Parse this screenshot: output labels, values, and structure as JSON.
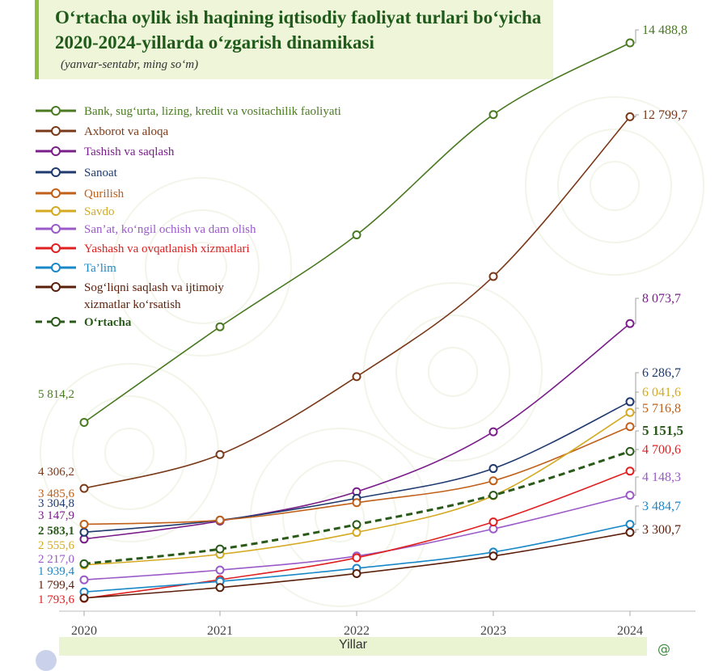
{
  "title": "O‘rtacha oylik ish haqining iqtisodiy faoliyat turlari bo‘yicha 2020-2024-yillarda o‘zgarish dinamikasi",
  "subtitle": "(yanvar-sentabr, ming so‘m)",
  "chart_data": {
    "type": "line",
    "x": [
      "2020",
      "2021",
      "2022",
      "2023",
      "2024"
    ],
    "xlabel": "Yillar",
    "ylabel": "",
    "legend_position": "top-left",
    "grid": false,
    "series": [
      {
        "name": "Bank, sug‘urta, lizing, kredit va vositachilik faoliyati",
        "color": "#4a7a22",
        "values": [
          5814.2,
          8000,
          10100,
          12850,
          14488.8
        ],
        "start_label": "5 814,2",
        "end_label": "14 488,8"
      },
      {
        "name": "Axborot va aloqa",
        "color": "#7a3a1a",
        "values": [
          4306.2,
          5080,
          6860,
          9150,
          12799.7
        ],
        "start_label": "4 306,2",
        "end_label": "12 799,7"
      },
      {
        "name": "Tashish va saqlash",
        "color": "#7a1f8a",
        "values": [
          3147.9,
          3560,
          4230,
          5600,
          8073.7
        ],
        "start_label": "3 147,9",
        "end_label": "8 073,7"
      },
      {
        "name": "Sanoat",
        "color": "#1f3a6e",
        "values": [
          3304.8,
          3580,
          4080,
          4760,
          6286.7
        ],
        "start_label": "3 304,8",
        "end_label": "6 286,7"
      },
      {
        "name": "Qurilish",
        "color": "#c0601a",
        "values": [
          3485.6,
          3580,
          3980,
          4480,
          5716.8
        ],
        "start_label": "3 485,6",
        "end_label": "5 716,8"
      },
      {
        "name": "Savdo",
        "color": "#d4aa22",
        "values": [
          2555.6,
          2800,
          3300,
          4140,
          6041.6
        ],
        "start_label": "2 555,6",
        "end_label": "6 041,6"
      },
      {
        "name": "San’at, ko‘ngil ochish va dam olish",
        "color": "#9a5ac8",
        "values": [
          2217.0,
          2440,
          2760,
          3380,
          4148.3
        ],
        "start_label": "2 217,0",
        "end_label": "4 148,3"
      },
      {
        "name": "Yashash va ovqatlanish xizmatlari",
        "color": "#e02020",
        "values": [
          1793.6,
          2220,
          2720,
          3540,
          4700.6
        ],
        "start_label": "1 793,6",
        "end_label": "4 700,6"
      },
      {
        "name": "Ta’lim",
        "color": "#1a88c8",
        "values": [
          1939.4,
          2180,
          2480,
          2850,
          3484.7
        ],
        "start_label": "1 939,4",
        "end_label": "3 484,7"
      },
      {
        "name": "Sog‘liqni saqlash va ijtimoiy xizmatlar ko‘rsatish",
        "color": "#5a1f0a",
        "values": [
          1799.4,
          2040,
          2360,
          2760,
          3300.7
        ],
        "start_label": "1 799,4",
        "end_label": "3 300,7"
      },
      {
        "name": "O‘rtacha",
        "color": "#2a5a1a",
        "dashed": true,
        "values": [
          2583.1,
          2920,
          3480,
          4150,
          5151.5
        ],
        "start_label": "2 583,1",
        "end_label": "5 151,5"
      }
    ]
  }
}
